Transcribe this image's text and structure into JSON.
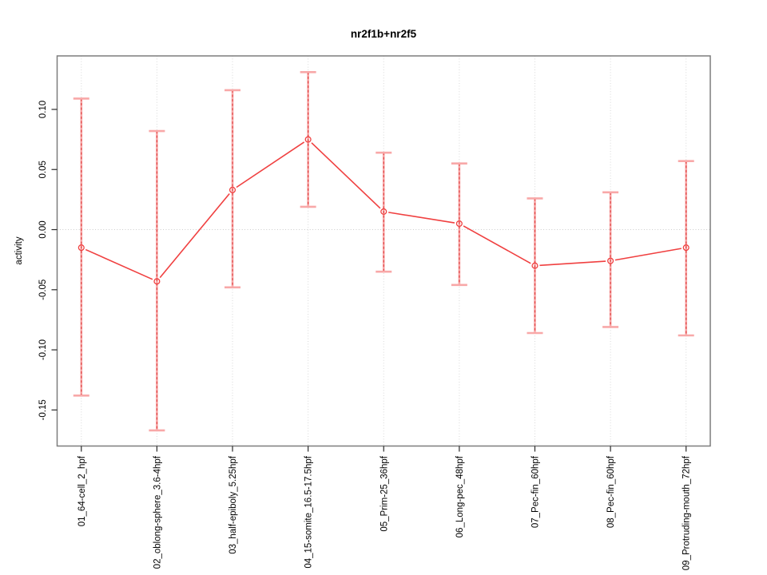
{
  "figure": {
    "background": "#ffffff"
  },
  "chart_data": {
    "type": "line",
    "title": "nr2f1b+nr2f5",
    "xlabel": "",
    "ylabel": "activity",
    "categories": [
      "01_64-cell_2_hpf",
      "02_oblong-sphere_3.6-4hpf",
      "03_half-epiboly_5.25hpf",
      "04_15-somite_16.5-17.5hpf",
      "05_Prim-25_36hpf",
      "06_Long-pec_48hpf",
      "07_Pec-fin_60hpf",
      "08_Pec-fin_60hpf",
      "09_Protruding-mouth_72hpf"
    ],
    "series": [
      {
        "name": "activity",
        "values": [
          -0.015,
          -0.043,
          0.033,
          0.075,
          0.015,
          0.005,
          -0.03,
          -0.026,
          -0.015
        ],
        "error_low": [
          -0.138,
          -0.167,
          -0.048,
          0.019,
          -0.035,
          -0.046,
          -0.086,
          -0.081,
          -0.088
        ],
        "error_high": [
          0.109,
          0.082,
          0.116,
          0.131,
          0.064,
          0.055,
          0.026,
          0.031,
          0.057
        ]
      }
    ],
    "ylim": [
      -0.18,
      0.1445
    ],
    "xlim": [
      0.68,
      9.32
    ],
    "yticks": [
      0.1,
      0.05,
      0.0,
      -0.05,
      -0.1,
      -0.15
    ],
    "ytick_labels": [
      "0.10",
      "0.05",
      "0.00",
      "-0.05",
      "-0.10",
      "-0.15"
    ],
    "grid": {
      "vertical_gridlines": "dotted line at each category",
      "zero_line": "dotted horizontal line at 0.00",
      "other_horizontal_gridlines": false
    },
    "legend": {
      "visible": false
    },
    "point_marker": "open-circle",
    "colors": {
      "line": "#f04040",
      "marker": "#f04040",
      "error_bar": "#f8a8a8",
      "error_bar_dash": "#e14f4f",
      "grid": "#d8d8d8",
      "zero_line": "#cbcbcb",
      "box": "#7d7d7d",
      "tick": "#2b2b2b",
      "text": "#000000",
      "background": "#ffffff"
    }
  }
}
